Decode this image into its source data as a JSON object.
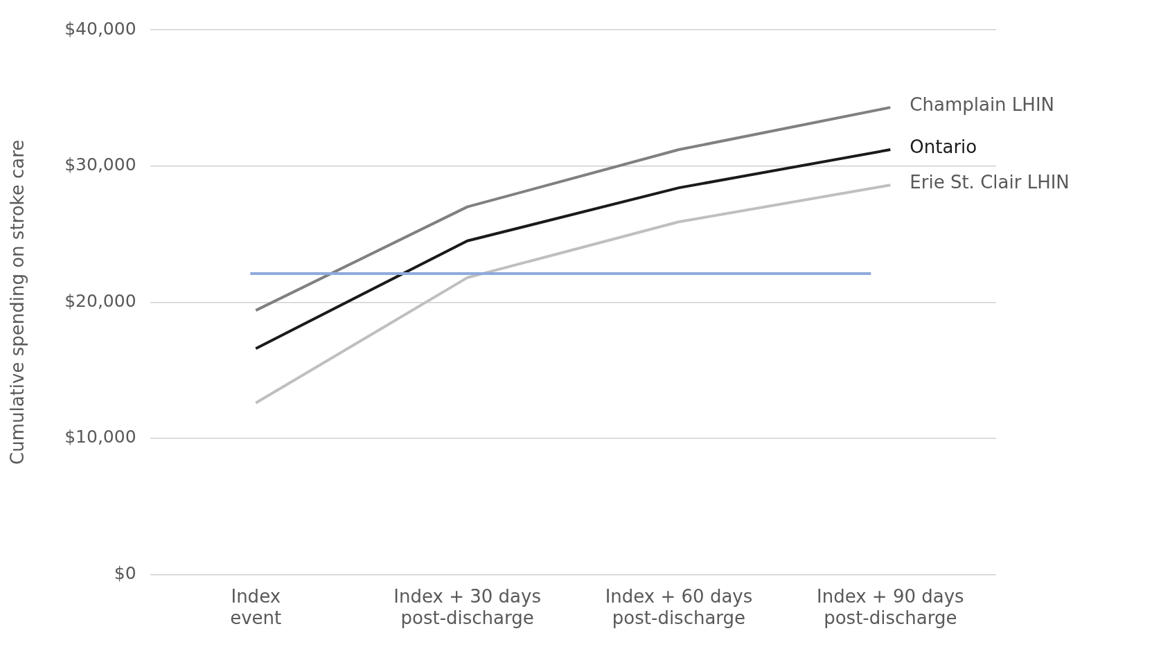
{
  "chart_data": {
    "type": "line",
    "ylabel": "Cumulative spending on stroke care",
    "categories": [
      "Index event",
      "Index + 30 days post-discharge",
      "Index + 60 days post-discharge",
      "Index + 90 days post-discharge"
    ],
    "series": [
      {
        "name": "Champlain LHIN",
        "color": "#808080",
        "values": [
          19400,
          27000,
          31200,
          34300
        ]
      },
      {
        "name": "Ontario",
        "color": "#1a1a1a",
        "values": [
          16600,
          24500,
          28400,
          31200
        ]
      },
      {
        "name": "Erie St. Clair LHIN",
        "color": "#bfbfbf",
        "values": [
          12600,
          21800,
          25900,
          28600
        ]
      }
    ],
    "ref_lines": [
      {
        "axis": "y",
        "value": 22100,
        "color": "#8faadc"
      }
    ],
    "ylim": [
      0,
      40000
    ],
    "yticks": [
      {
        "value": 0,
        "label": "$0"
      },
      {
        "value": 10000,
        "label": "$10,000"
      },
      {
        "value": 20000,
        "label": "$20,000"
      },
      {
        "value": 30000,
        "label": "$30,000"
      },
      {
        "value": 40000,
        "label": "$40,000"
      }
    ],
    "grid": "y",
    "legend": false,
    "marker": "none",
    "line_style": "solid"
  }
}
